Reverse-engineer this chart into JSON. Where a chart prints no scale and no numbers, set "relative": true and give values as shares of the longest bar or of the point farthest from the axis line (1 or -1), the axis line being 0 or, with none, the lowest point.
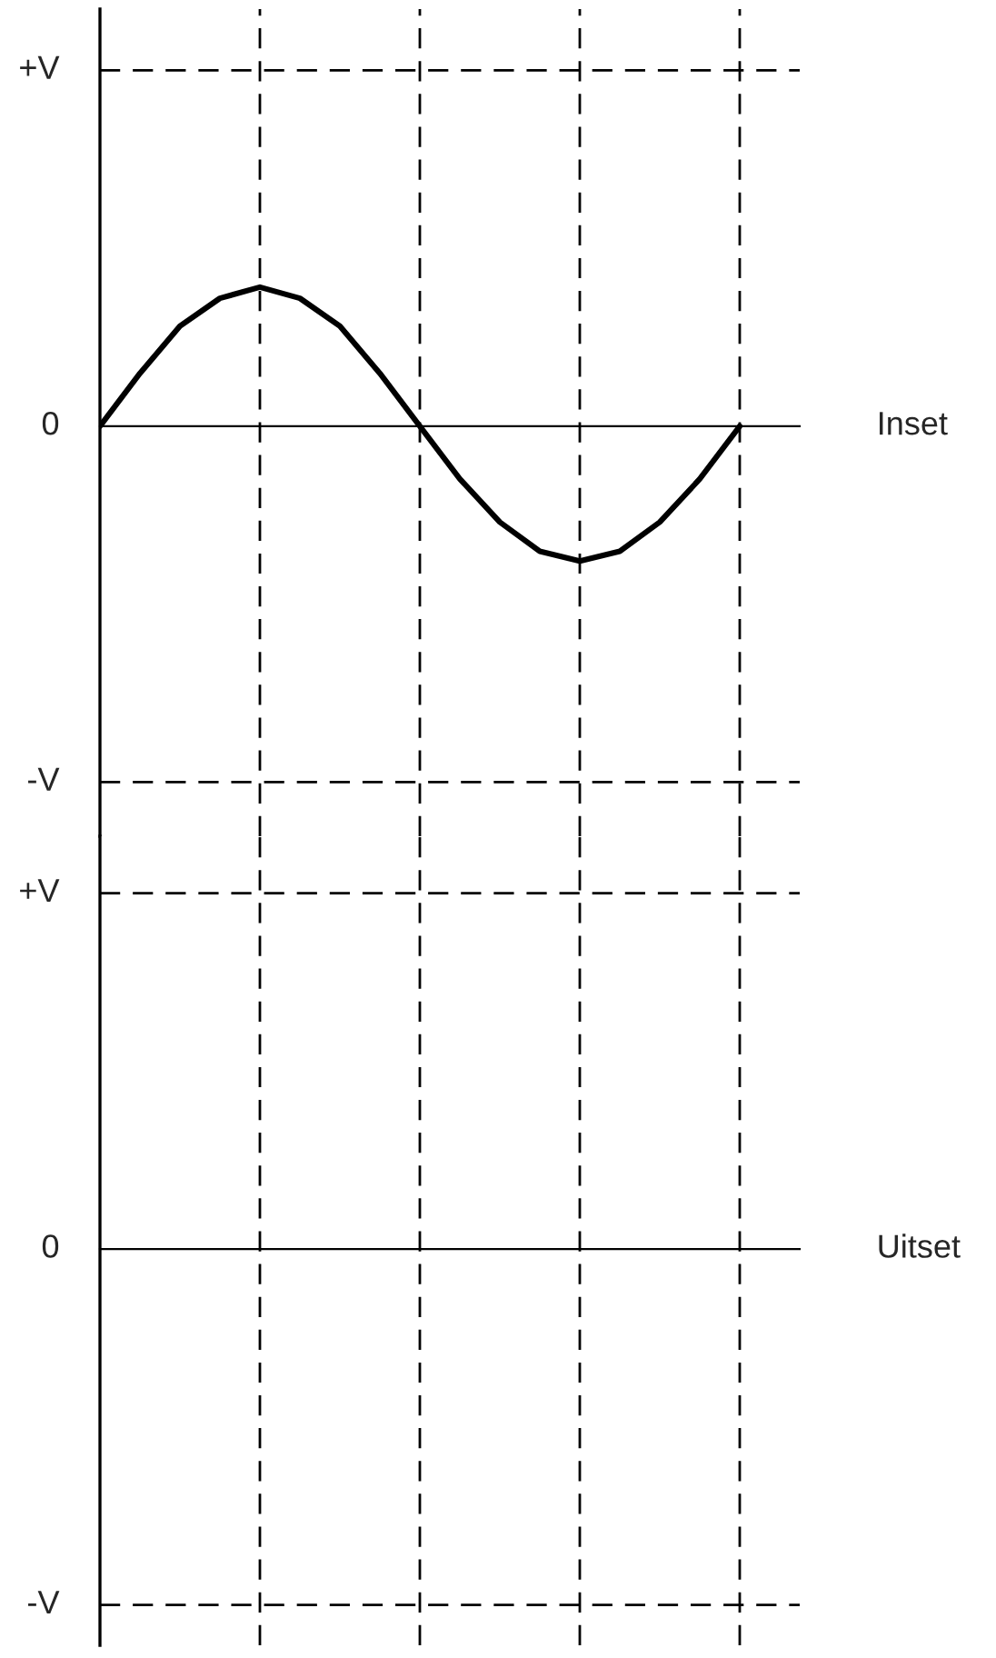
{
  "chart_data": [
    {
      "type": "line",
      "ylabel": "Inset",
      "relative": true,
      "grid": true,
      "categories": [
        null,
        null,
        null,
        null,
        null,
        null,
        null,
        null,
        null,
        null,
        null,
        null,
        null,
        null,
        null,
        null,
        null
      ],
      "annotations": [
        "+V",
        "0",
        "-V"
      ],
      "series": [
        {
          "color": "#000000",
          "values": [
            0,
            0.38,
            0.72,
            0.92,
            1,
            0.92,
            0.72,
            0.38,
            0,
            -0.38,
            -0.69,
            -0.9,
            -0.97,
            -0.9,
            -0.69,
            -0.38,
            0
          ]
        }
      ]
    },
    {
      "type": "other",
      "ylabel": "Uitset",
      "annotations": [
        "+V",
        "0",
        "-V"
      ]
    }
  ]
}
